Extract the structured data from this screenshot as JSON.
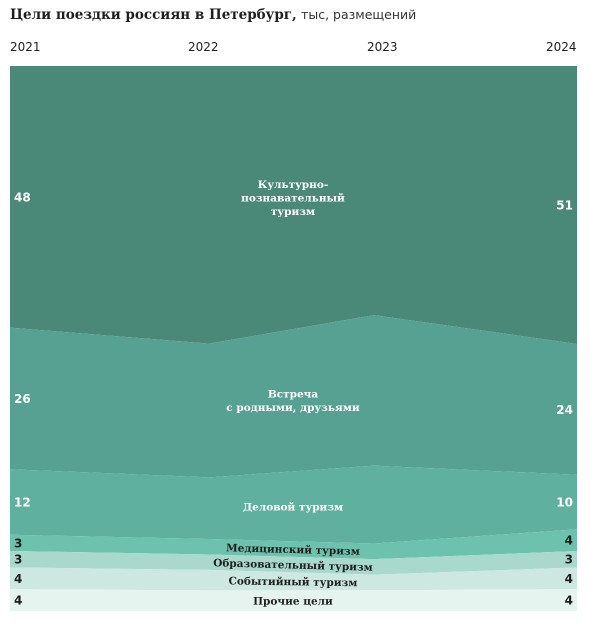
{
  "chart": {
    "title_bold": "Цели поездки россиян в Петербург,",
    "title_unit": "тыс, размещений"
  },
  "chart_data": {
    "type": "area",
    "title": "Цели поездки россиян в Петербург, тыс, размещений",
    "x": [
      "2021",
      "2022",
      "2023",
      "2024"
    ],
    "stacking": "percent",
    "series": [
      {
        "name": "Культурно-познавательный туризм",
        "label_lines": [
          "Культурно-",
          "познавательный",
          "туризм"
        ],
        "values": [
          48,
          54,
          48,
          51
        ],
        "color": "#4a8878",
        "label_color": "#ffffff"
      },
      {
        "name": "Встреча с родными, друзьями",
        "label_lines": [
          "Встреча",
          "с родными, друзьями"
        ],
        "values": [
          26,
          26,
          29,
          24
        ],
        "color": "#56a191",
        "label_color": "#ffffff"
      },
      {
        "name": "Деловой туризм",
        "label_lines": [
          "Деловой туризм"
        ],
        "values": [
          12,
          12,
          15,
          10
        ],
        "color": "#60b09f",
        "label_color": "#ffffff"
      },
      {
        "name": "Медицинский туризм",
        "label_lines": [
          "Медицинский туризм"
        ],
        "values": [
          3,
          3,
          3,
          4
        ],
        "color": "#6cc2ad",
        "label_color": "#1e1e1e"
      },
      {
        "name": "Образовательный туризм",
        "label_lines": [
          "Образовательный туризм"
        ],
        "values": [
          3,
          3,
          3,
          3
        ],
        "color": "#a8d9cc",
        "label_color": "#1e1e1e"
      },
      {
        "name": "Событийный туризм",
        "label_lines": [
          "Событийный туризм"
        ],
        "values": [
          4,
          4,
          3,
          4
        ],
        "color": "#cde8e0",
        "label_color": "#1e1e1e"
      },
      {
        "name": "Прочие цели",
        "label_lines": [
          "Прочие цели"
        ],
        "values": [
          4,
          4,
          4,
          4
        ],
        "color": "#e6f4ef",
        "label_color": "#1e1e1e"
      }
    ],
    "value_labels": {
      "left": [
        "48",
        "26",
        "12",
        "3",
        "3",
        "4",
        "4"
      ],
      "right": [
        "51",
        "24",
        "10",
        "4",
        "3",
        "4",
        "4"
      ]
    },
    "legend": "inline",
    "grid": false
  }
}
